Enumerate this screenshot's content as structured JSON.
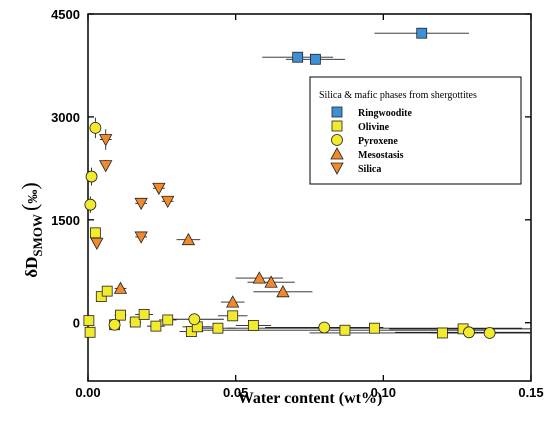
{
  "chart_data": {
    "type": "scatter",
    "xlabel": "Water content (wt%)",
    "ylabel": {
      "main": "δD",
      "subscript": "SMOW",
      "unit": "‰"
    },
    "xlim": [
      0,
      0.15
    ],
    "ylim": [
      -850,
      4500
    ],
    "x_ticks": [
      {
        "value": 0,
        "label": "0.00"
      },
      {
        "value": 0.05,
        "label": "0.05"
      },
      {
        "value": 0.1,
        "label": "0.10"
      },
      {
        "value": 0.15,
        "label": "0.15"
      }
    ],
    "y_ticks": [
      {
        "value": 0,
        "label": "0"
      },
      {
        "value": 1500,
        "label": "1500"
      },
      {
        "value": 3000,
        "label": "3000"
      },
      {
        "value": 4500,
        "label": "4500"
      }
    ],
    "grid": false,
    "legend": {
      "title": "Silica & mafic phases from shergottites",
      "placement": "top-right"
    },
    "series": [
      {
        "name": "Ringwoodite",
        "marker": "square",
        "color": "#3d8fd6",
        "points": [
          {
            "x": 0.071,
            "y": 3870,
            "xerr": 0.012,
            "yerr": 50
          },
          {
            "x": 0.077,
            "y": 3840,
            "xerr": 0.01,
            "yerr": 40
          },
          {
            "x": 0.113,
            "y": 4220,
            "xerr": 0.016,
            "yerr": 50
          }
        ]
      },
      {
        "name": "Olivine",
        "marker": "square",
        "color": "#f2ea2c",
        "points": [
          {
            "x": 0.0003,
            "y": 30,
            "xerr": 0,
            "yerr": 60
          },
          {
            "x": 0.0007,
            "y": -140,
            "xerr": 0,
            "yerr": 60
          },
          {
            "x": 0.0025,
            "y": 1310,
            "xerr": 0.001,
            "yerr": 40
          },
          {
            "x": 0.0045,
            "y": 380,
            "xerr": 0.001,
            "yerr": 40
          },
          {
            "x": 0.0065,
            "y": 460,
            "xerr": 0.001,
            "yerr": 40
          },
          {
            "x": 0.009,
            "y": -30,
            "xerr": 0.001,
            "yerr": 30
          },
          {
            "x": 0.011,
            "y": 110,
            "xerr": 0.002,
            "yerr": 30
          },
          {
            "x": 0.016,
            "y": 10,
            "xerr": 0.002,
            "yerr": 30
          },
          {
            "x": 0.019,
            "y": 120,
            "xerr": 0.003,
            "yerr": 30
          },
          {
            "x": 0.023,
            "y": -50,
            "xerr": 0.003,
            "yerr": 30
          },
          {
            "x": 0.027,
            "y": 40,
            "xerr": 0.003,
            "yerr": 30
          },
          {
            "x": 0.035,
            "y": -130,
            "xerr": 0.004,
            "yerr": 30
          },
          {
            "x": 0.037,
            "y": -60,
            "xerr": 0.005,
            "yerr": 30
          },
          {
            "x": 0.044,
            "y": -80,
            "xerr": 0.006,
            "yerr": 30
          },
          {
            "x": 0.049,
            "y": 100,
            "xerr": 0.005,
            "yerr": 30
          },
          {
            "x": 0.056,
            "y": -40,
            "xerr": 0.006,
            "yerr": 30
          },
          {
            "x": 0.087,
            "y": -110,
            "xerr": 0.05,
            "yerr": 30
          },
          {
            "x": 0.097,
            "y": -80,
            "xerr": 0.05,
            "yerr": 30
          },
          {
            "x": 0.12,
            "y": -150,
            "xerr": 0.045,
            "yerr": 30
          },
          {
            "x": 0.127,
            "y": -90,
            "xerr": 0.025,
            "yerr": 30
          }
        ]
      },
      {
        "name": "Pyroxene",
        "marker": "circle",
        "color": "#f2ea2c",
        "points": [
          {
            "x": 0.0025,
            "y": 2840,
            "xerr": 0,
            "yerr": 150
          },
          {
            "x": 0.0012,
            "y": 2130,
            "xerr": 0,
            "yerr": 130
          },
          {
            "x": 0.0008,
            "y": 1720,
            "xerr": 0,
            "yerr": 120
          },
          {
            "x": 0.009,
            "y": -30,
            "xerr": 0,
            "yerr": 60
          },
          {
            "x": 0.036,
            "y": 50,
            "xerr": 0.01,
            "yerr": 60
          },
          {
            "x": 0.08,
            "y": -70,
            "xerr": 0.02,
            "yerr": 40
          },
          {
            "x": 0.129,
            "y": -140,
            "xerr": 0.025,
            "yerr": 40
          },
          {
            "x": 0.136,
            "y": -150,
            "xerr": 0.02,
            "yerr": 40
          }
        ]
      },
      {
        "name": "Mesostasis",
        "marker": "triangle-up",
        "color": "#f28a2c",
        "points": [
          {
            "x": 0.011,
            "y": 500,
            "xerr": 0.002,
            "yerr": 40
          },
          {
            "x": 0.034,
            "y": 1210,
            "xerr": 0.004,
            "yerr": 40
          },
          {
            "x": 0.049,
            "y": 300,
            "xerr": 0.004,
            "yerr": 40
          },
          {
            "x": 0.058,
            "y": 650,
            "xerr": 0.008,
            "yerr": 40
          },
          {
            "x": 0.062,
            "y": 590,
            "xerr": 0.008,
            "yerr": 40
          },
          {
            "x": 0.066,
            "y": 450,
            "xerr": 0.01,
            "yerr": 40
          }
        ]
      },
      {
        "name": "Silica",
        "marker": "triangle-down",
        "color": "#f28a2c",
        "points": [
          {
            "x": 0.006,
            "y": 2670,
            "xerr": 0.002,
            "yerr": 150
          },
          {
            "x": 0.006,
            "y": 2290,
            "xerr": 0.001,
            "yerr": 80
          },
          {
            "x": 0.003,
            "y": 1160,
            "xerr": 0.001,
            "yerr": 60
          },
          {
            "x": 0.018,
            "y": 1250,
            "xerr": 0.002,
            "yerr": 50
          },
          {
            "x": 0.018,
            "y": 1740,
            "xerr": 0.002,
            "yerr": 60
          },
          {
            "x": 0.024,
            "y": 1960,
            "xerr": 0.002,
            "yerr": 60
          },
          {
            "x": 0.027,
            "y": 1770,
            "xerr": 0.002,
            "yerr": 60
          }
        ]
      }
    ]
  }
}
